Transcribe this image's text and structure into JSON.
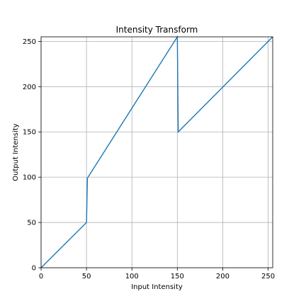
{
  "chart_data": {
    "type": "line",
    "title": "Intensity Transform",
    "xlabel": "Input Intensity",
    "ylabel": "Output Intensity",
    "xlim": [
      0,
      255
    ],
    "ylim": [
      0,
      255
    ],
    "xticks": [
      0,
      50,
      100,
      150,
      200,
      250
    ],
    "yticks": [
      0,
      50,
      100,
      150,
      200,
      250
    ],
    "grid": true,
    "series": [
      {
        "color": "#1f77b4",
        "x": [
          0,
          50,
          51,
          150,
          151,
          255
        ],
        "y": [
          0,
          50,
          99,
          255,
          150,
          255
        ]
      }
    ]
  }
}
